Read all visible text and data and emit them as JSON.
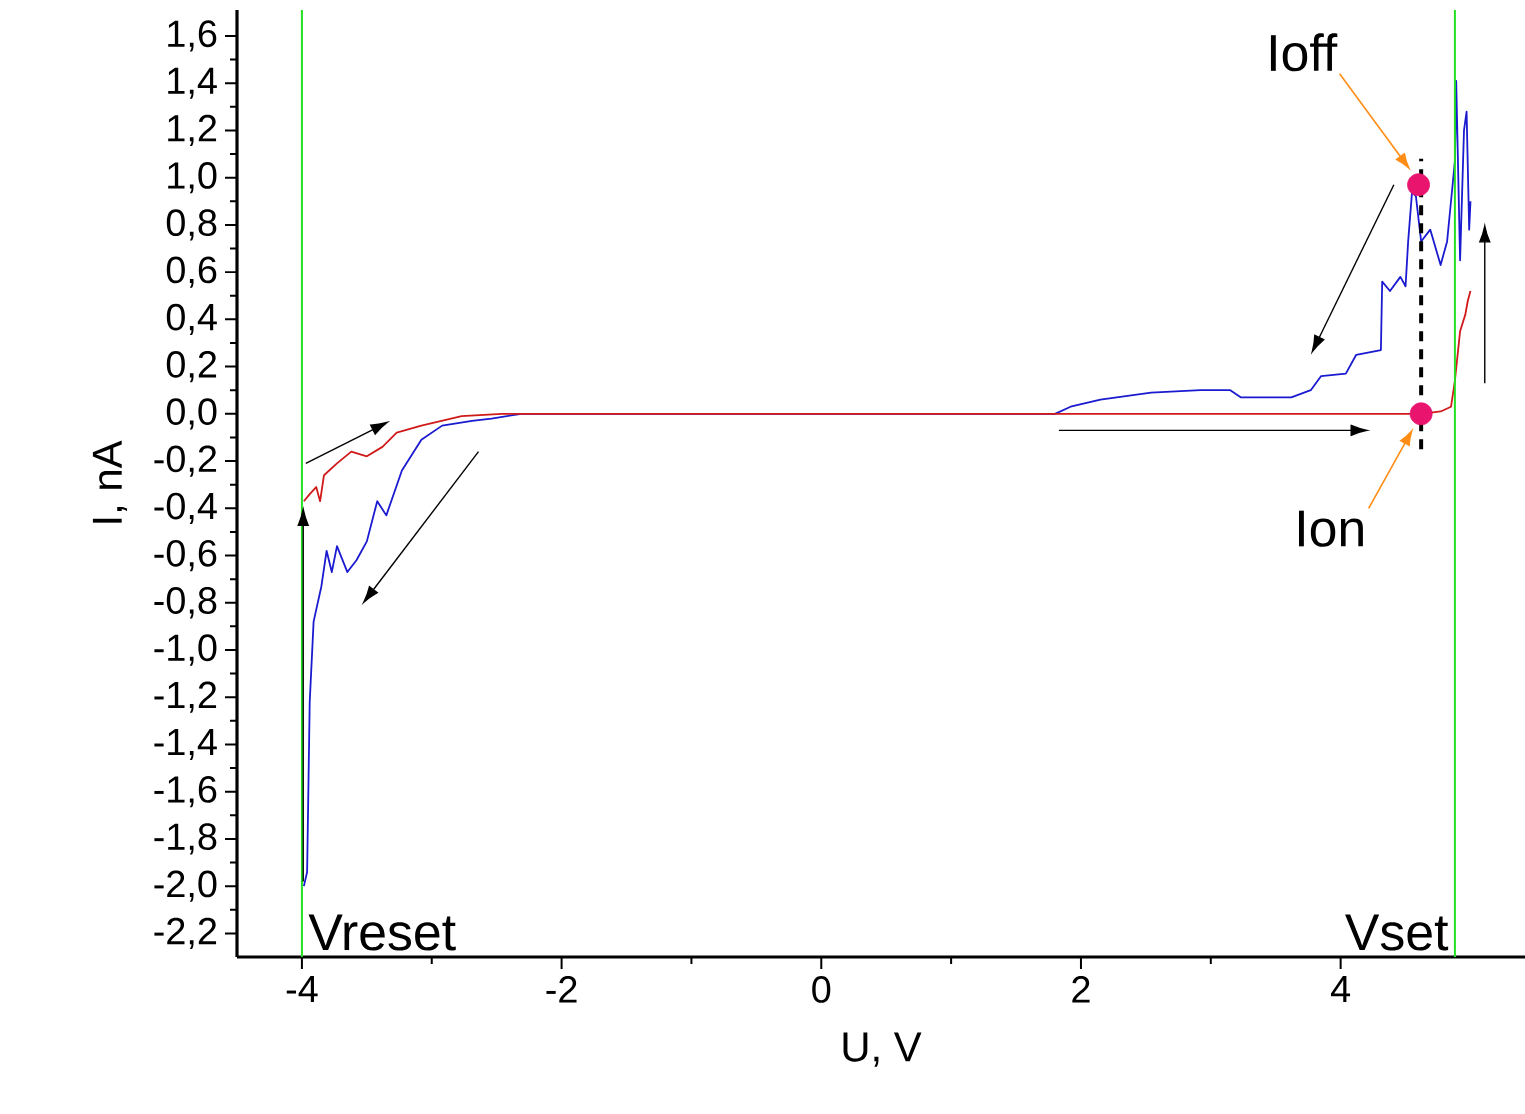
{
  "chart_data": {
    "type": "line",
    "xlabel": "U, V",
    "ylabel": "I, nA",
    "xlim": [
      -4.5,
      5.42
    ],
    "ylim": [
      -2.3,
      1.71
    ],
    "xticks": [
      -4,
      -2,
      0,
      2,
      4
    ],
    "yticks": [
      {
        "value": -2.2,
        "label": "-2,2"
      },
      {
        "value": -2.0,
        "label": "-2,0"
      },
      {
        "value": -1.8,
        "label": "-1,8"
      },
      {
        "value": -1.6,
        "label": "-1,6"
      },
      {
        "value": -1.4,
        "label": "-1,4"
      },
      {
        "value": -1.2,
        "label": "-1,2"
      },
      {
        "value": -1.0,
        "label": "-1,0"
      },
      {
        "value": -0.8,
        "label": "-0,8"
      },
      {
        "value": -0.6,
        "label": "-0,6"
      },
      {
        "value": -0.4,
        "label": "-0,4"
      },
      {
        "value": -0.2,
        "label": "-0,2"
      },
      {
        "value": 0.0,
        "label": "0,0"
      },
      {
        "value": 0.2,
        "label": "0,2"
      },
      {
        "value": 0.4,
        "label": "0,4"
      },
      {
        "value": 0.6,
        "label": "0,6"
      },
      {
        "value": 0.8,
        "label": "0,8"
      },
      {
        "value": 1.0,
        "label": "1,0"
      },
      {
        "value": 1.2,
        "label": "1,2"
      },
      {
        "value": 1.4,
        "label": "1,4"
      },
      {
        "value": 1.6,
        "label": "1,6"
      }
    ],
    "series": [
      {
        "color": "#1a1ad0",
        "x": [
          -3.985,
          -3.96,
          -3.94,
          -3.91,
          -3.85,
          -3.81,
          -3.77,
          -3.73,
          -3.65,
          -3.58,
          -3.5,
          -3.42,
          -3.35,
          -3.23,
          -3.08,
          -2.92,
          -2.69,
          -2.54,
          -2.31,
          1.8,
          1.92,
          2.15,
          2.54,
          2.92,
          3.15,
          3.23,
          3.62,
          3.77,
          3.85,
          4.04,
          4.12,
          4.31,
          4.32,
          4.38,
          4.46,
          4.5,
          4.52,
          4.55,
          4.58,
          4.62,
          4.69,
          4.77,
          4.82,
          4.85,
          4.88,
          4.89,
          4.92,
          4.95,
          4.97,
          4.99,
          5.0
        ],
        "values": [
          -2.0,
          -1.94,
          -1.22,
          -0.88,
          -0.73,
          -0.58,
          -0.67,
          -0.56,
          -0.67,
          -0.62,
          -0.54,
          -0.37,
          -0.43,
          -0.24,
          -0.11,
          -0.05,
          -0.03,
          -0.02,
          0.0,
          0.0,
          0.03,
          0.06,
          0.09,
          0.1,
          0.1,
          0.07,
          0.07,
          0.1,
          0.16,
          0.17,
          0.25,
          0.27,
          0.56,
          0.52,
          0.58,
          0.54,
          0.73,
          0.94,
          0.92,
          0.73,
          0.78,
          0.63,
          0.73,
          0.9,
          1.07,
          1.41,
          0.65,
          1.2,
          1.28,
          0.78,
          0.9
        ]
      },
      {
        "color": "#d01a1a",
        "x": [
          -3.985,
          -3.94,
          -3.89,
          -3.86,
          -3.83,
          -3.73,
          -3.62,
          -3.5,
          -3.38,
          -3.27,
          -3.08,
          -2.77,
          -2.46,
          4.62,
          4.77,
          4.85,
          4.88,
          4.92,
          4.96,
          4.98,
          5.0
        ],
        "values": [
          -0.37,
          -0.34,
          -0.31,
          -0.37,
          -0.26,
          -0.21,
          -0.16,
          -0.18,
          -0.14,
          -0.08,
          -0.05,
          -0.01,
          0.0,
          0.0,
          0.01,
          0.03,
          0.14,
          0.35,
          0.42,
          0.48,
          0.52
        ]
      },
      {
        "color": "#000000",
        "line_style": "dashed",
        "x": [
          4.62,
          4.62
        ],
        "values": [
          -0.15,
          1.08
        ]
      },
      {
        "type": "scatter",
        "marker": "circle",
        "color": "#e8146e",
        "x": [
          4.6,
          4.62
        ],
        "values": [
          0.97,
          0.0
        ]
      }
    ],
    "ref_lines": [
      {
        "axis": "x",
        "value": -4,
        "label": "Vreset",
        "color": "#22e022"
      },
      {
        "axis": "x",
        "value": 4.88,
        "label": "Vset",
        "color": "#22e022"
      }
    ],
    "annotations": [
      {
        "text": "Ioff",
        "x": 4.6,
        "y": 0.97
      },
      {
        "text": "Ion",
        "x": 4.62,
        "y": 0.0
      }
    ]
  }
}
